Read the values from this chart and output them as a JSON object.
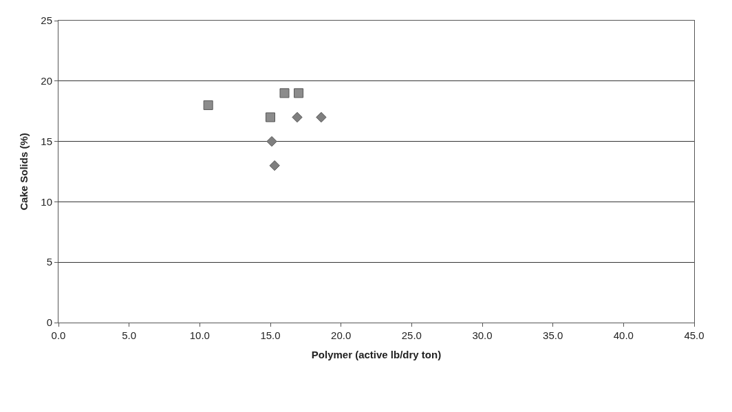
{
  "chart_data": {
    "type": "scatter",
    "xlabel": "Polymer (active lb/dry ton)",
    "ylabel": "Cake Solids (%)",
    "series": [
      {
        "color": "#7f7f7f",
        "marker": "diamond",
        "x": [
          15.1,
          15.3,
          16.9,
          18.6
        ],
        "values": [
          15,
          13,
          17,
          17
        ]
      },
      {
        "color": "#8c8c8c",
        "marker": "square",
        "x": [
          10.6,
          15.0,
          16.0,
          17.0
        ],
        "values": [
          18,
          17,
          19,
          19
        ]
      }
    ],
    "xlim": [
      0,
      45
    ],
    "xticks": [
      {
        "value": 0,
        "label": "0.0"
      },
      {
        "value": 5,
        "label": "5.0"
      },
      {
        "value": 10,
        "label": "10.0"
      },
      {
        "value": 15,
        "label": "15.0"
      },
      {
        "value": 20,
        "label": "20.0"
      },
      {
        "value": 25,
        "label": "25.0"
      },
      {
        "value": 30,
        "label": "30.0"
      },
      {
        "value": 35,
        "label": "35.0"
      },
      {
        "value": 40,
        "label": "40.0"
      },
      {
        "value": 45,
        "label": "45.0"
      }
    ],
    "ylim": [
      0,
      25
    ],
    "yticks": [
      0,
      5,
      10,
      15,
      20,
      25
    ],
    "grid": "y"
  }
}
